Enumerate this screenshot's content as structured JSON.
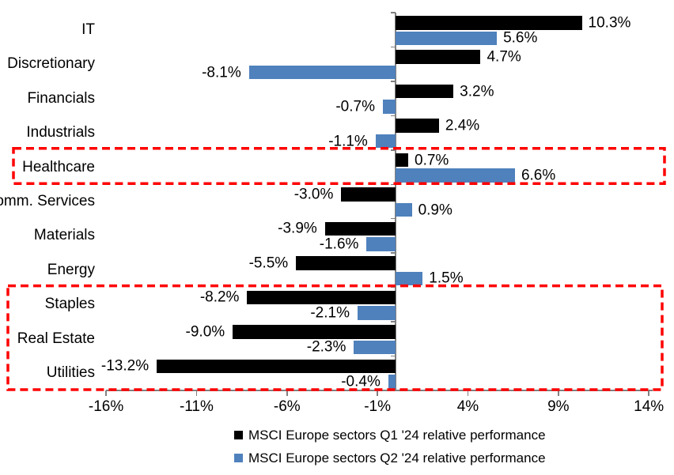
{
  "chart_data": {
    "type": "bar",
    "orientation": "horizontal",
    "categories": [
      "IT",
      "Discretionary",
      "Financials",
      "Industrials",
      "Healthcare",
      "Comm. Services",
      "Materials",
      "Energy",
      "Staples",
      "Real Estate",
      "Utilities"
    ],
    "series": [
      {
        "name": "MSCI Europe sectors Q1 '24 relative performance",
        "color": "#000000",
        "values": [
          10.3,
          4.7,
          3.2,
          2.4,
          0.7,
          -3.0,
          -3.9,
          -5.5,
          -8.2,
          -9.0,
          -13.2
        ],
        "labels": [
          "10.3%",
          "4.7%",
          "3.2%",
          "2.4%",
          "0.7%",
          "-3.0%",
          "-3.9%",
          "-5.5%",
          "-8.2%",
          "-9.0%",
          "-13.2%"
        ]
      },
      {
        "name": "MSCI Europe sectors Q2 '24 relative performance",
        "color": "#4F81BD",
        "values": [
          5.6,
          -8.1,
          -0.7,
          -1.1,
          6.6,
          0.9,
          -1.6,
          1.5,
          -2.1,
          -2.3,
          -0.4
        ],
        "labels": [
          "5.6%",
          "-8.1%",
          "-0.7%",
          "-1.1%",
          "6.6%",
          "0.9%",
          "-1.6%",
          "1.5%",
          "-2.1%",
          "-2.3%",
          "-0.4%"
        ]
      }
    ],
    "x_axis": {
      "ticks": [
        "-16%",
        "-11%",
        "-6%",
        "-1%",
        "4%",
        "9%",
        "14%"
      ],
      "tick_values": [
        -16,
        -11,
        -6,
        -1,
        4,
        9,
        14
      ],
      "min": -16,
      "max": 14,
      "unit": "%"
    },
    "grid": false,
    "legend_position": "bottom",
    "highlights": [
      {
        "name": "healthcare-box",
        "from_category": "Healthcare",
        "to_category": "Healthcare",
        "from_index": 4,
        "to_index": 4,
        "color": "#FF0000",
        "style": "dashed"
      },
      {
        "name": "staples-realestate-utilities-box",
        "from_category": "Staples",
        "to_category": "Utilities",
        "from_index": 8,
        "to_index": 10,
        "color": "#FF0000",
        "style": "dashed"
      }
    ]
  },
  "legend": {
    "items": [
      {
        "label": "MSCI Europe sectors Q1 '24 relative performance",
        "color": "#000000"
      },
      {
        "label": "MSCI Europe sectors Q2 '24 relative performance",
        "color": "#4F81BD"
      }
    ]
  },
  "colors": {
    "q1": "#000000",
    "q2": "#4F81BD",
    "highlight": "#FF0000",
    "axis": "#808080",
    "text": "#000000",
    "background": "#FFFFFF"
  }
}
